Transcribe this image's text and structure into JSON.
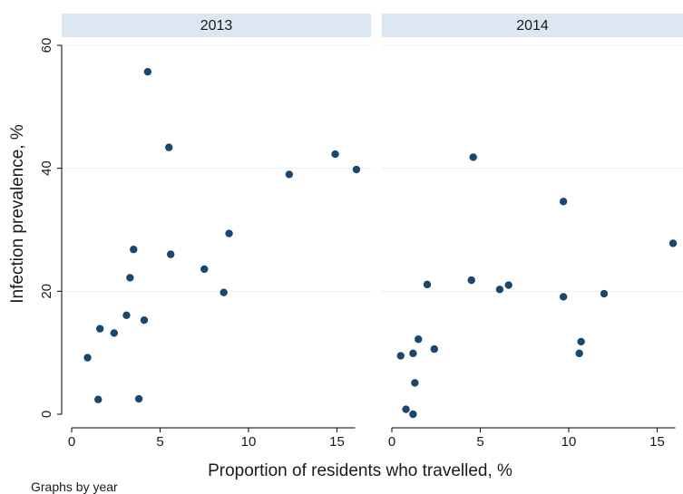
{
  "chart_data": {
    "type": "scatter",
    "ylabel": "Infection prevalence, %",
    "xlabel": "Proportion of residents who travelled, %",
    "note": "Graphs by year",
    "xlim": [
      0,
      16
    ],
    "ylim": [
      0,
      60
    ],
    "x_ticks": [
      0,
      5,
      10,
      15
    ],
    "y_ticks": [
      0,
      20,
      40,
      60
    ],
    "grid": true,
    "point_color": "#1a476f",
    "header_color": "#dce7f1",
    "panels": [
      {
        "title": "2013",
        "points": [
          {
            "x": 0.9,
            "y": 9.2
          },
          {
            "x": 1.5,
            "y": 2.4
          },
          {
            "x": 1.6,
            "y": 13.9
          },
          {
            "x": 2.4,
            "y": 13.2
          },
          {
            "x": 3.1,
            "y": 16.1
          },
          {
            "x": 3.3,
            "y": 22.2
          },
          {
            "x": 3.5,
            "y": 26.8
          },
          {
            "x": 3.8,
            "y": 2.5
          },
          {
            "x": 4.1,
            "y": 15.3
          },
          {
            "x": 4.3,
            "y": 55.7
          },
          {
            "x": 5.5,
            "y": 43.4
          },
          {
            "x": 5.6,
            "y": 26.0
          },
          {
            "x": 7.5,
            "y": 23.6
          },
          {
            "x": 8.6,
            "y": 19.8
          },
          {
            "x": 8.9,
            "y": 29.4
          },
          {
            "x": 12.3,
            "y": 39.0
          },
          {
            "x": 14.9,
            "y": 42.3
          },
          {
            "x": 16.1,
            "y": 39.8
          }
        ]
      },
      {
        "title": "2014",
        "points": [
          {
            "x": 0.5,
            "y": 9.5
          },
          {
            "x": 0.8,
            "y": 0.8
          },
          {
            "x": 1.2,
            "y": 0.0
          },
          {
            "x": 1.2,
            "y": 9.9
          },
          {
            "x": 1.3,
            "y": 5.1
          },
          {
            "x": 1.5,
            "y": 12.2
          },
          {
            "x": 2.0,
            "y": 21.1
          },
          {
            "x": 2.4,
            "y": 10.6
          },
          {
            "x": 4.5,
            "y": 21.8
          },
          {
            "x": 4.6,
            "y": 41.8
          },
          {
            "x": 6.1,
            "y": 20.3
          },
          {
            "x": 6.6,
            "y": 21.0
          },
          {
            "x": 9.7,
            "y": 19.1
          },
          {
            "x": 9.7,
            "y": 34.6
          },
          {
            "x": 10.6,
            "y": 9.9
          },
          {
            "x": 10.7,
            "y": 11.8
          },
          {
            "x": 12.0,
            "y": 19.6
          },
          {
            "x": 15.9,
            "y": 27.8
          }
        ]
      }
    ]
  }
}
